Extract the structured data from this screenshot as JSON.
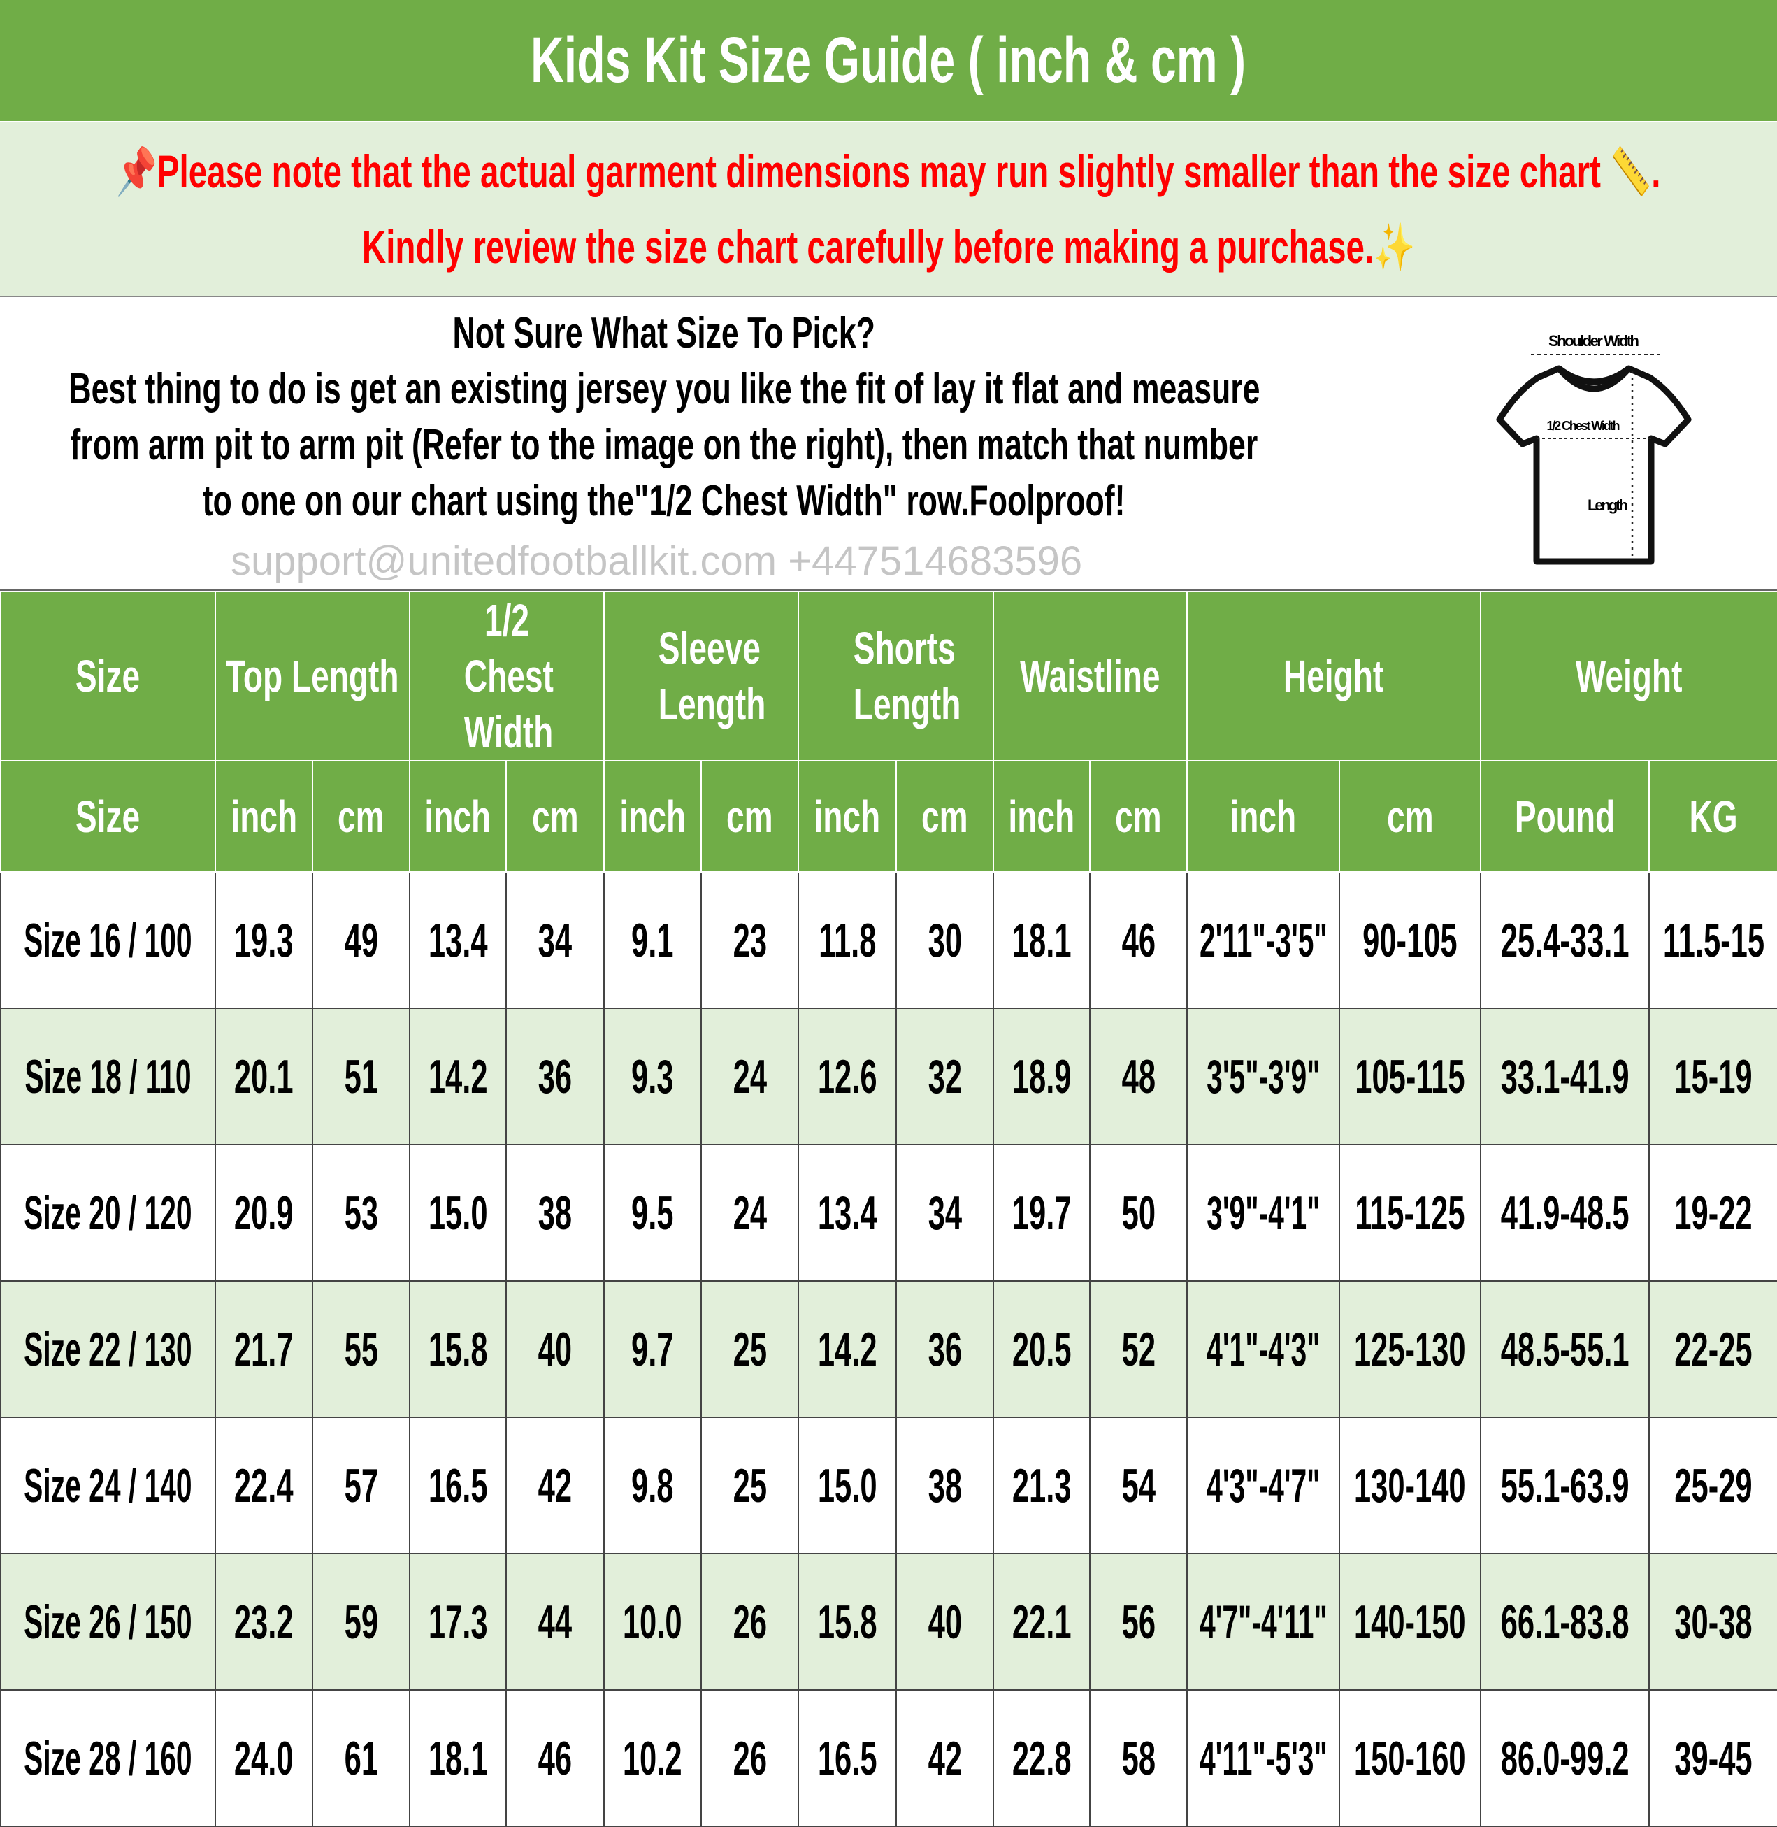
{
  "title": "Kids Kit Size Guide ( inch & cm )",
  "note": {
    "line1": "📌Please note that the actual garment dimensions may run slightly smaller than the size chart 📏.",
    "line2": "Kindly review the size chart carefully before making a purchase.✨"
  },
  "info": {
    "heading": "Not Sure What Size To Pick?",
    "line1": "Best thing to do is get an existing jersey you like the fit of lay it flat and measure",
    "line2": "from arm pit to arm pit (Refer to the image on the right), then match that number",
    "line3": "to one on our chart using the\"1/2 Chest Width\" row.Foolproof!"
  },
  "diagram": {
    "shoulder": "Shoulder Width",
    "chest": "1/2 Chest Width",
    "length": "Length"
  },
  "watermark": "support@unitedfootballkit.com +447514683596",
  "colors": {
    "header_green": "#70AD47",
    "row_alt": "#E2EFDA",
    "note_red": "#FF0000"
  },
  "table": {
    "groups": [
      "Size",
      "Top Length",
      "1/2 Chest Width",
      "Sleeve Length",
      "Shorts Length",
      "Waistline",
      "Height",
      "Weight"
    ],
    "units": [
      "Size",
      "inch",
      "cm",
      "inch",
      "cm",
      "inch",
      "cm",
      "inch",
      "cm",
      "inch",
      "cm",
      "inch",
      "cm",
      "Pound",
      "KG"
    ],
    "rows": [
      [
        "Size 16 / 100",
        "19.3",
        "49",
        "13.4",
        "34",
        "9.1",
        "23",
        "11.8",
        "30",
        "18.1",
        "46",
        "2'11\"-3'5\"",
        "90-105",
        "25.4-33.1",
        "11.5-15"
      ],
      [
        "Size 18 / 110",
        "20.1",
        "51",
        "14.2",
        "36",
        "9.3",
        "24",
        "12.6",
        "32",
        "18.9",
        "48",
        "3'5\"-3'9\"",
        "105-115",
        "33.1-41.9",
        "15-19"
      ],
      [
        "Size 20 / 120",
        "20.9",
        "53",
        "15.0",
        "38",
        "9.5",
        "24",
        "13.4",
        "34",
        "19.7",
        "50",
        "3'9\"-4'1\"",
        "115-125",
        "41.9-48.5",
        "19-22"
      ],
      [
        "Size 22 / 130",
        "21.7",
        "55",
        "15.8",
        "40",
        "9.7",
        "25",
        "14.2",
        "36",
        "20.5",
        "52",
        "4'1\"-4'3\"",
        "125-130",
        "48.5-55.1",
        "22-25"
      ],
      [
        "Size 24 / 140",
        "22.4",
        "57",
        "16.5",
        "42",
        "9.8",
        "25",
        "15.0",
        "38",
        "21.3",
        "54",
        "4'3\"-4'7\"",
        "130-140",
        "55.1-63.9",
        "25-29"
      ],
      [
        "Size 26 / 150",
        "23.2",
        "59",
        "17.3",
        "44",
        "10.0",
        "26",
        "15.8",
        "40",
        "22.1",
        "56",
        "4'7\"-4'11\"",
        "140-150",
        "66.1-83.8",
        "30-38"
      ],
      [
        "Size 28 / 160",
        "24.0",
        "61",
        "18.1",
        "46",
        "10.2",
        "26",
        "16.5",
        "42",
        "22.8",
        "58",
        "4'11\"-5'3\"",
        "150-160",
        "86.0-99.2",
        "39-45"
      ]
    ]
  }
}
